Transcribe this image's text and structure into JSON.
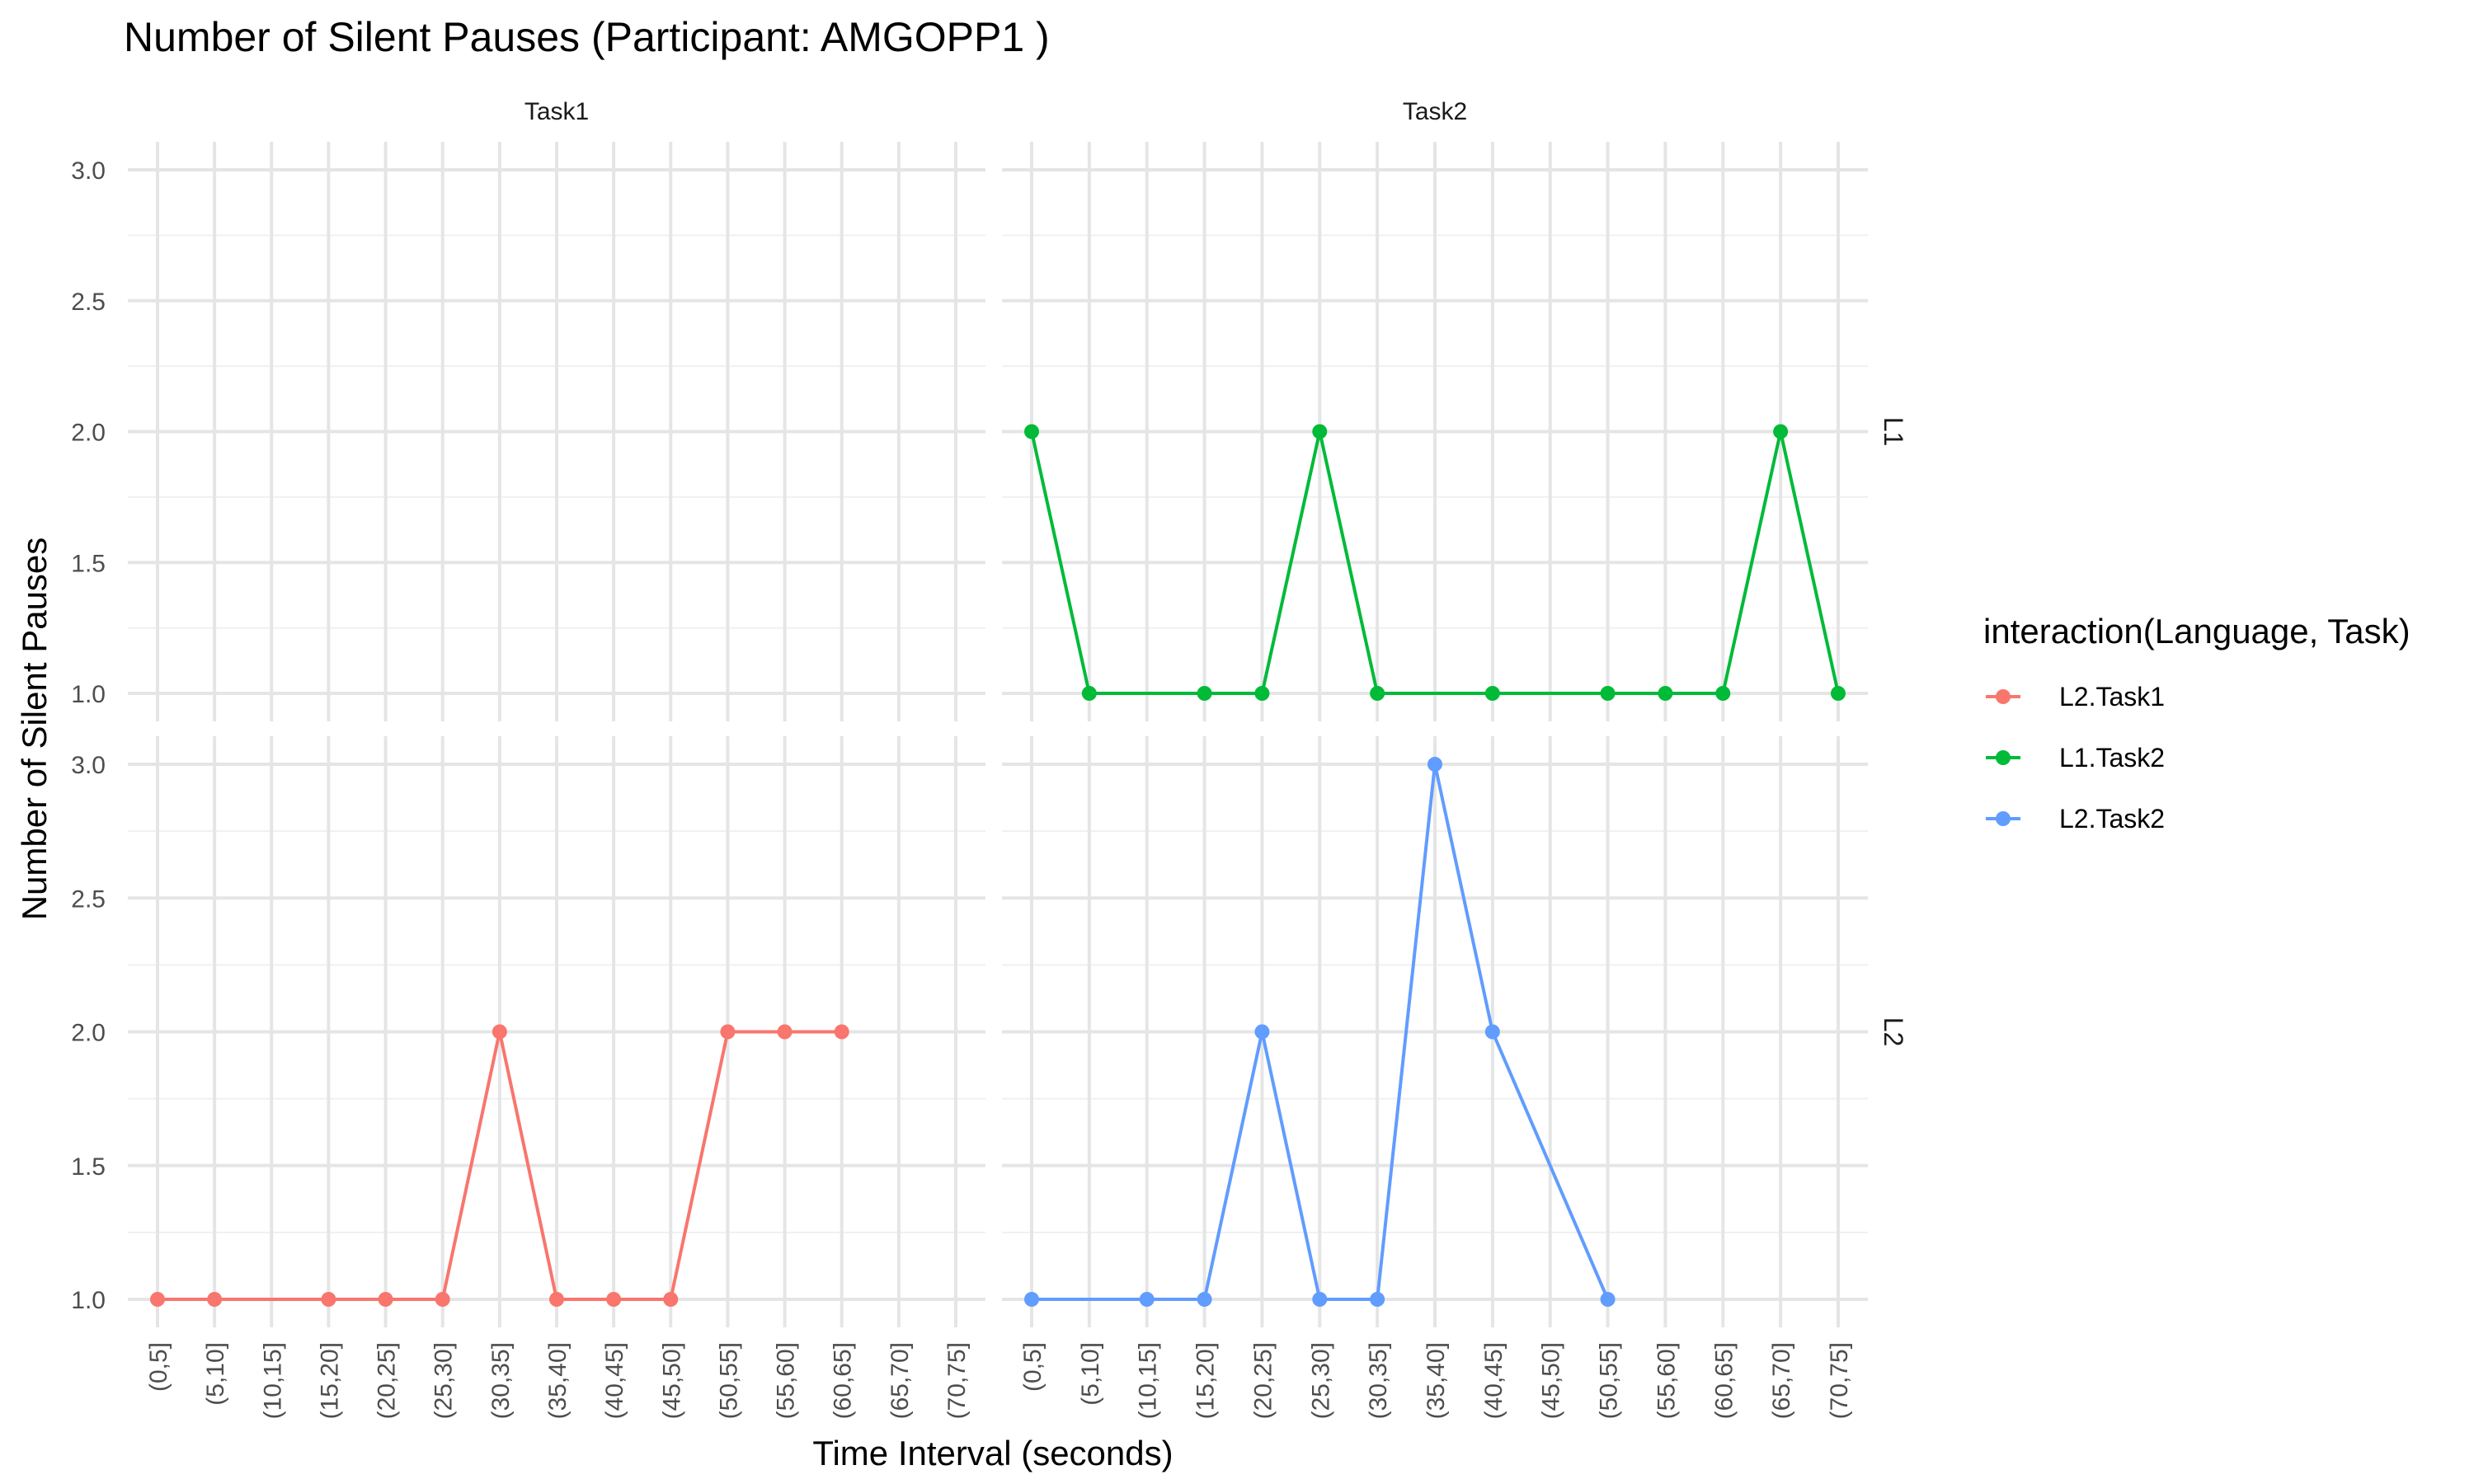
{
  "chart_data": {
    "type": "line",
    "title": "Number of Silent Pauses (Participant: AMGOPP1 )",
    "xlabel": "Time Interval (seconds)",
    "ylabel": "Number of Silent Pauses",
    "categories": [
      "(0,5]",
      "(5,10]",
      "(10,15]",
      "(15,20]",
      "(20,25]",
      "(25,30]",
      "(30,35]",
      "(35,40]",
      "(40,45]",
      "(45,50]",
      "(50,55]",
      "(55,60]",
      "(60,65]",
      "(65,70]",
      "(70,75]"
    ],
    "y_ticks": [
      "1.0",
      "1.5",
      "2.0",
      "2.5",
      "3.0"
    ],
    "ylim": [
      1,
      3
    ],
    "grid": true,
    "facet_columns": [
      "Task1",
      "Task2"
    ],
    "facet_rows": [
      "L1",
      "L2"
    ],
    "legend": {
      "title": "interaction(Language, Task)",
      "position": "right",
      "items": [
        {
          "name": "L2.Task1",
          "color": "#F8766D"
        },
        {
          "name": "L1.Task2",
          "color": "#00BA38"
        },
        {
          "name": "L2.Task2",
          "color": "#619CFF"
        }
      ]
    },
    "series": [
      {
        "name": "L1.Task2",
        "facet_column": "Task2",
        "facet_row": "L1",
        "color": "#00BA38",
        "points": [
          {
            "x": "(0,5]",
            "y": 2
          },
          {
            "x": "(5,10]",
            "y": 1
          },
          {
            "x": "(15,20]",
            "y": 1
          },
          {
            "x": "(20,25]",
            "y": 1
          },
          {
            "x": "(25,30]",
            "y": 2
          },
          {
            "x": "(30,35]",
            "y": 1
          },
          {
            "x": "(40,45]",
            "y": 1
          },
          {
            "x": "(50,55]",
            "y": 1
          },
          {
            "x": "(55,60]",
            "y": 1
          },
          {
            "x": "(60,65]",
            "y": 1
          },
          {
            "x": "(65,70]",
            "y": 2
          },
          {
            "x": "(70,75]",
            "y": 1
          }
        ]
      },
      {
        "name": "L2.Task1",
        "facet_column": "Task1",
        "facet_row": "L2",
        "color": "#F8766D",
        "points": [
          {
            "x": "(0,5]",
            "y": 1
          },
          {
            "x": "(5,10]",
            "y": 1
          },
          {
            "x": "(15,20]",
            "y": 1
          },
          {
            "x": "(20,25]",
            "y": 1
          },
          {
            "x": "(25,30]",
            "y": 1
          },
          {
            "x": "(30,35]",
            "y": 2
          },
          {
            "x": "(35,40]",
            "y": 1
          },
          {
            "x": "(40,45]",
            "y": 1
          },
          {
            "x": "(45,50]",
            "y": 1
          },
          {
            "x": "(50,55]",
            "y": 2
          },
          {
            "x": "(55,60]",
            "y": 2
          },
          {
            "x": "(60,65]",
            "y": 2
          }
        ]
      },
      {
        "name": "L2.Task2",
        "facet_column": "Task2",
        "facet_row": "L2",
        "color": "#619CFF",
        "points": [
          {
            "x": "(0,5]",
            "y": 1
          },
          {
            "x": "(10,15]",
            "y": 1
          },
          {
            "x": "(15,20]",
            "y": 1
          },
          {
            "x": "(20,25]",
            "y": 2
          },
          {
            "x": "(25,30]",
            "y": 1
          },
          {
            "x": "(30,35]",
            "y": 1
          },
          {
            "x": "(35,40]",
            "y": 3
          },
          {
            "x": "(40,45]",
            "y": 2
          },
          {
            "x": "(50,55]",
            "y": 1
          }
        ]
      }
    ]
  }
}
